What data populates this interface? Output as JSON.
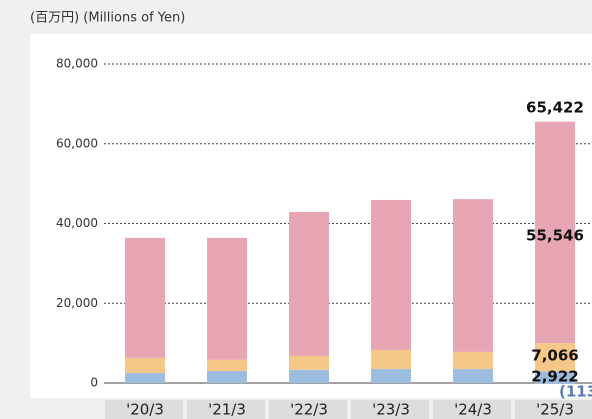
{
  "chart_data": {
    "type": "stacked_bar",
    "subtitle": "(百万円) (Millions of Yen)",
    "categories": [
      "'20/3",
      "'21/3",
      "'22/3",
      "'23/3",
      "'24/3",
      "'25/3"
    ],
    "series": [
      {
        "color": "#9dbde0",
        "values": [
          2500,
          3000,
          3300,
          3500,
          3500,
          2922
        ],
        "value_labels": [
          null,
          null,
          null,
          null,
          null,
          "2,922"
        ]
      },
      {
        "color": "#f5c88a",
        "values": [
          3800,
          2800,
          3500,
          4800,
          4300,
          7066
        ],
        "value_labels": [
          null,
          null,
          null,
          null,
          null,
          "7,066"
        ]
      },
      {
        "color": "#e8a6b4",
        "values": [
          30100,
          30600,
          36100,
          37600,
          38300,
          55546
        ],
        "value_labels": [
          null,
          null,
          null,
          null,
          null,
          "55,546"
        ]
      },
      {
        "color": "#5a7ab0",
        "values": [
          null,
          null,
          null,
          null,
          null,
          -113
        ],
        "value_labels": [
          null,
          null,
          null,
          null,
          null,
          "(113"
        ]
      }
    ],
    "totals": [
      null,
      null,
      null,
      null,
      null,
      65422
    ],
    "total_labels": [
      null,
      null,
      null,
      null,
      null,
      "65,422"
    ],
    "ylim": [
      0,
      80000
    ],
    "yticks": [
      0,
      {
        "value": 20000,
        "label": "20,000"
      },
      {
        "value": 40000,
        "label": "40,000"
      },
      {
        "value": 60000,
        "label": "60,000"
      },
      {
        "value": 80000,
        "label": "80,000"
      }
    ],
    "grid": true
  }
}
